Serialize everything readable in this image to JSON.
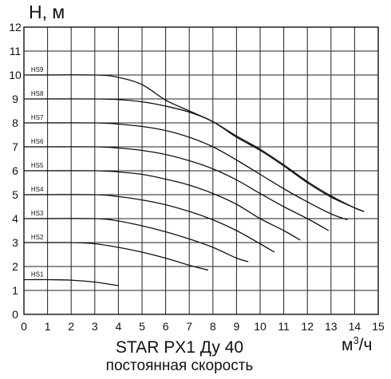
{
  "chart_data": {
    "type": "line",
    "title": "STAR PX1 Ду 40",
    "subtitle": "постоянная скорость",
    "ylabel": "H, м",
    "xlabel_unit": "м",
    "xlabel_exp": "3",
    "xlabel_suffix": "/ч",
    "xlim": [
      0,
      15
    ],
    "ylim": [
      0,
      12
    ],
    "xticks": [
      "0",
      "1",
      "2",
      "3",
      "4",
      "5",
      "6",
      "7",
      "8",
      "9",
      "10",
      "11",
      "12",
      "13",
      "14",
      "15"
    ],
    "yticks": [
      "0",
      "1",
      "2",
      "3",
      "4",
      "5",
      "6",
      "7",
      "8",
      "9",
      "10",
      "11",
      "12"
    ],
    "grid": true,
    "series": [
      {
        "name": "HS1",
        "points": [
          [
            0,
            1.45
          ],
          [
            1,
            1.45
          ],
          [
            2,
            1.43
          ],
          [
            3,
            1.35
          ],
          [
            4,
            1.2
          ]
        ]
      },
      {
        "name": "HS2",
        "points": [
          [
            0,
            3.0
          ],
          [
            2,
            3.0
          ],
          [
            3,
            2.95
          ],
          [
            4,
            2.8
          ],
          [
            5,
            2.6
          ],
          [
            6,
            2.35
          ],
          [
            7,
            2.05
          ],
          [
            7.8,
            1.85
          ]
        ]
      },
      {
        "name": "HS3",
        "points": [
          [
            0,
            4.0
          ],
          [
            3,
            4.0
          ],
          [
            4,
            3.9
          ],
          [
            5,
            3.7
          ],
          [
            6,
            3.45
          ],
          [
            7,
            3.15
          ],
          [
            8,
            2.8
          ],
          [
            9,
            2.35
          ],
          [
            9.5,
            2.2
          ]
        ]
      },
      {
        "name": "HS4",
        "points": [
          [
            0,
            5.0
          ],
          [
            3,
            5.0
          ],
          [
            4,
            4.92
          ],
          [
            5,
            4.78
          ],
          [
            6,
            4.58
          ],
          [
            7,
            4.3
          ],
          [
            8,
            3.95
          ],
          [
            9,
            3.5
          ],
          [
            10,
            2.95
          ],
          [
            10.6,
            2.6
          ]
        ]
      },
      {
        "name": "HS5",
        "points": [
          [
            0,
            6.0
          ],
          [
            3,
            6.0
          ],
          [
            4,
            5.95
          ],
          [
            5,
            5.85
          ],
          [
            6,
            5.65
          ],
          [
            7,
            5.4
          ],
          [
            8,
            5.05
          ],
          [
            9,
            4.6
          ],
          [
            10,
            4.0
          ],
          [
            11,
            3.5
          ],
          [
            11.7,
            3.1
          ]
        ]
      },
      {
        "name": "HS6",
        "points": [
          [
            0,
            7.0
          ],
          [
            3,
            7.0
          ],
          [
            4,
            6.95
          ],
          [
            5,
            6.85
          ],
          [
            6,
            6.68
          ],
          [
            7,
            6.42
          ],
          [
            8,
            6.08
          ],
          [
            9,
            5.62
          ],
          [
            10,
            5.05
          ],
          [
            11,
            4.5
          ],
          [
            12,
            4.0
          ],
          [
            12.9,
            3.5
          ]
        ]
      },
      {
        "name": "HS7",
        "points": [
          [
            0,
            8.0
          ],
          [
            3,
            8.0
          ],
          [
            4,
            7.95
          ],
          [
            5,
            7.85
          ],
          [
            6,
            7.68
          ],
          [
            7,
            7.4
          ],
          [
            8,
            7.0
          ],
          [
            9,
            6.45
          ],
          [
            10,
            5.85
          ],
          [
            11,
            5.25
          ],
          [
            12,
            4.7
          ],
          [
            13,
            4.2
          ],
          [
            13.7,
            3.95
          ]
        ]
      },
      {
        "name": "HS8",
        "points": [
          [
            0,
            9.0
          ],
          [
            3,
            9.0
          ],
          [
            4,
            8.97
          ],
          [
            5,
            8.88
          ],
          [
            6,
            8.7
          ],
          [
            7,
            8.45
          ],
          [
            8,
            8.05
          ],
          [
            9,
            7.4
          ],
          [
            10,
            6.85
          ],
          [
            11,
            6.2
          ],
          [
            12,
            5.5
          ],
          [
            13,
            4.9
          ],
          [
            14,
            4.45
          ],
          [
            14.4,
            4.3
          ]
        ]
      },
      {
        "name": "HS9",
        "points": [
          [
            0,
            10.0
          ],
          [
            3,
            10.0
          ],
          [
            4,
            9.9
          ],
          [
            5,
            9.6
          ],
          [
            6,
            8.95
          ],
          [
            7,
            8.5
          ],
          [
            8,
            8.05
          ],
          [
            9,
            7.45
          ],
          [
            10,
            6.9
          ],
          [
            11,
            6.25
          ],
          [
            12,
            5.55
          ],
          [
            13,
            4.95
          ],
          [
            14,
            4.45
          ],
          [
            14.4,
            4.3
          ]
        ]
      }
    ]
  }
}
